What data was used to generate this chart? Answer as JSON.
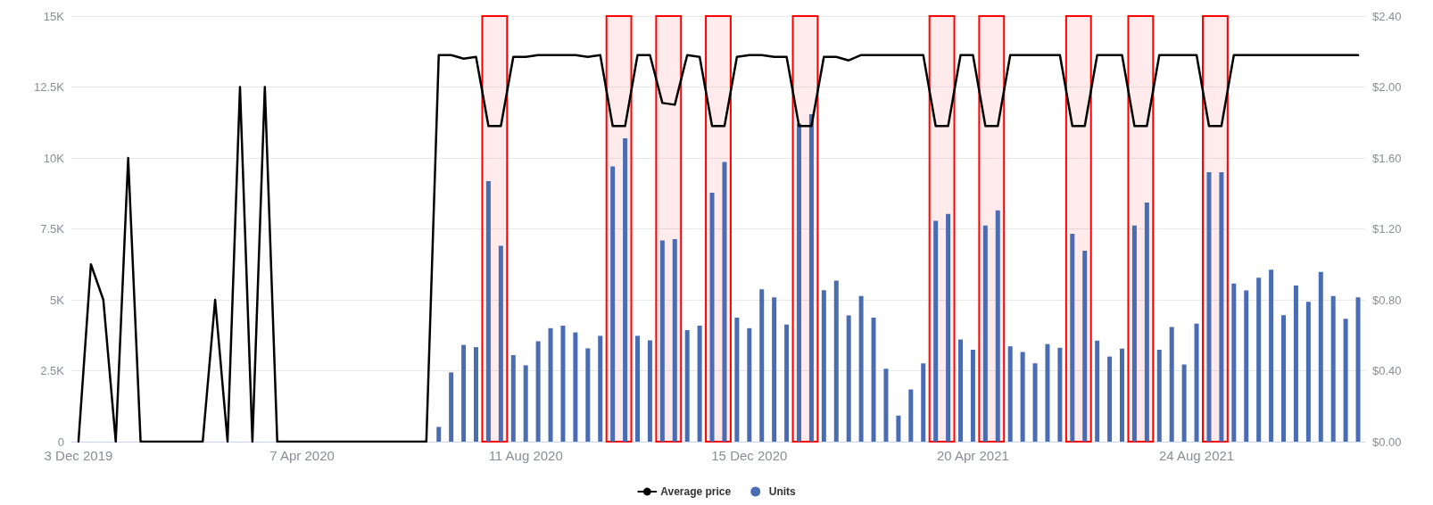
{
  "chart_data": {
    "type": "bar",
    "x": [
      "2019-12-03",
      "2019-12-10",
      "2019-12-17",
      "2019-12-24",
      "2019-12-31",
      "2020-01-07",
      "2020-01-14",
      "2020-01-21",
      "2020-01-28",
      "2020-02-04",
      "2020-02-11",
      "2020-02-18",
      "2020-02-25",
      "2020-03-03",
      "2020-03-10",
      "2020-03-17",
      "2020-03-24",
      "2020-03-31",
      "2020-04-07",
      "2020-04-14",
      "2020-04-21",
      "2020-04-28",
      "2020-05-05",
      "2020-05-12",
      "2020-05-19",
      "2020-05-26",
      "2020-06-02",
      "2020-06-09",
      "2020-06-16",
      "2020-06-23",
      "2020-06-30",
      "2020-07-07",
      "2020-07-14",
      "2020-07-21",
      "2020-07-28",
      "2020-08-04",
      "2020-08-11",
      "2020-08-18",
      "2020-08-25",
      "2020-09-01",
      "2020-09-08",
      "2020-09-15",
      "2020-09-22",
      "2020-09-29",
      "2020-10-06",
      "2020-10-13",
      "2020-10-20",
      "2020-10-27",
      "2020-11-03",
      "2020-11-10",
      "2020-11-17",
      "2020-11-24",
      "2020-12-01",
      "2020-12-08",
      "2020-12-15",
      "2020-12-22",
      "2020-12-29",
      "2021-01-05",
      "2021-01-12",
      "2021-01-19",
      "2021-01-26",
      "2021-02-02",
      "2021-02-09",
      "2021-02-16",
      "2021-02-23",
      "2021-03-02",
      "2021-03-09",
      "2021-03-16",
      "2021-03-23",
      "2021-03-30",
      "2021-04-06",
      "2021-04-13",
      "2021-04-20",
      "2021-04-27",
      "2021-05-04",
      "2021-05-11",
      "2021-05-18",
      "2021-05-25",
      "2021-06-01",
      "2021-06-08",
      "2021-06-15",
      "2021-06-22",
      "2021-06-29",
      "2021-07-06",
      "2021-07-13",
      "2021-07-20",
      "2021-07-27",
      "2021-08-03",
      "2021-08-10",
      "2021-08-17",
      "2021-08-24",
      "2021-08-31",
      "2021-09-07",
      "2021-09-14",
      "2021-09-21",
      "2021-09-28",
      "2021-10-05",
      "2021-10-12",
      "2021-10-19",
      "2021-10-26",
      "2021-11-02",
      "2021-11-09",
      "2021-11-16",
      "2021-11-23"
    ],
    "series": [
      {
        "name": "Average price",
        "type": "line",
        "axis": "y2",
        "color": "#000000",
        "values": [
          0,
          1.0,
          0.8,
          0,
          1.6,
          0,
          0,
          0,
          0,
          0,
          0,
          0.8,
          0,
          2.0,
          0,
          2.0,
          0,
          0,
          0,
          0,
          0,
          0,
          0,
          0,
          0,
          0,
          0,
          0,
          0,
          2.18,
          2.18,
          2.16,
          2.17,
          1.78,
          1.78,
          2.17,
          2.17,
          2.18,
          2.18,
          2.18,
          2.18,
          2.17,
          2.18,
          1.78,
          1.78,
          2.18,
          2.18,
          1.91,
          1.9,
          2.18,
          2.17,
          1.78,
          1.78,
          2.17,
          2.18,
          2.18,
          2.17,
          2.17,
          1.78,
          1.78,
          2.17,
          2.17,
          2.15,
          2.18,
          2.18,
          2.18,
          2.18,
          2.18,
          2.18,
          1.78,
          1.78,
          2.18,
          2.18,
          1.78,
          1.78,
          2.18,
          2.18,
          2.18,
          2.18,
          2.18,
          1.78,
          1.78,
          2.18,
          2.18,
          2.18,
          1.78,
          1.78,
          2.18,
          2.18,
          2.18,
          2.18,
          1.78,
          1.78,
          2.18,
          2.18,
          2.18,
          2.18,
          2.18,
          2.18,
          2.18,
          2.18,
          2.18,
          2.18,
          2.18
        ]
      },
      {
        "name": "Units",
        "axis": "y",
        "color": "#4a6cb3",
        "values": [
          null,
          null,
          null,
          null,
          null,
          null,
          null,
          null,
          null,
          null,
          null,
          null,
          null,
          null,
          null,
          null,
          null,
          null,
          null,
          null,
          null,
          null,
          null,
          null,
          null,
          null,
          null,
          null,
          null,
          520,
          2440,
          3410,
          3330,
          9180,
          6900,
          3050,
          2690,
          3540,
          4000,
          4090,
          3850,
          3290,
          3730,
          9700,
          10690,
          3730,
          3570,
          7090,
          7140,
          3930,
          4090,
          8770,
          9860,
          4370,
          4000,
          5370,
          5090,
          4130,
          11210,
          11540,
          5340,
          5680,
          4450,
          5130,
          4370,
          2570,
          920,
          1840,
          2760,
          7780,
          8030,
          3600,
          3240,
          7620,
          8150,
          3360,
          3160,
          2760,
          3440,
          3310,
          7330,
          6730,
          3560,
          3000,
          3280,
          7620,
          8430,
          3240,
          4040,
          2720,
          4160,
          9500,
          9500,
          5570,
          5330,
          5780,
          6060,
          4460,
          5500,
          4930,
          5980,
          5130,
          4330,
          5090
        ]
      }
    ],
    "xlim": [
      "2019-11-29",
      "2021-11-27"
    ],
    "xticks": [
      {
        "value": "2019-12-03",
        "label": "3 Dec 2019"
      },
      {
        "value": "2020-04-07",
        "label": "7 Apr 2020"
      },
      {
        "value": "2020-08-11",
        "label": "11 Aug 2020"
      },
      {
        "value": "2020-12-15",
        "label": "15 Dec 2020"
      },
      {
        "value": "2021-04-20",
        "label": "20 Apr 2021"
      },
      {
        "value": "2021-08-24",
        "label": "24 Aug 2021"
      }
    ],
    "ylim": [
      0,
      15000
    ],
    "yticks": [
      {
        "value": 0,
        "label": "0"
      },
      {
        "value": 2500,
        "label": "2.5K"
      },
      {
        "value": 5000,
        "label": "5K"
      },
      {
        "value": 7500,
        "label": "7.5K"
      },
      {
        "value": 10000,
        "label": "10K"
      },
      {
        "value": 12500,
        "label": "12.5K"
      },
      {
        "value": 15000,
        "label": "15K"
      }
    ],
    "y2lim": [
      0,
      2.4
    ],
    "y2ticks": [
      {
        "value": 0,
        "label": "$0.00"
      },
      {
        "value": 0.4,
        "label": "$0.40"
      },
      {
        "value": 0.8,
        "label": "$0.80"
      },
      {
        "value": 1.2,
        "label": "$1.20"
      },
      {
        "value": 1.6,
        "label": "$1.60"
      },
      {
        "value": 2.0,
        "label": "$2.00"
      },
      {
        "value": 2.4,
        "label": "$2.40"
      }
    ],
    "bands": [
      {
        "axis": "x",
        "from": "2020-07-17T12:00",
        "to": "2020-07-31T12:00",
        "color": "#ff0000"
      },
      {
        "axis": "x",
        "from": "2020-09-25T12:00",
        "to": "2020-10-09T12:00",
        "color": "#ff0000"
      },
      {
        "axis": "x",
        "from": "2020-10-23T12:00",
        "to": "2020-11-06T12:00",
        "color": "#ff0000"
      },
      {
        "axis": "x",
        "from": "2020-11-20T12:00",
        "to": "2020-12-04T12:00",
        "color": "#ff0000"
      },
      {
        "axis": "x",
        "from": "2021-01-08T12:00",
        "to": "2021-01-22T12:00",
        "color": "#ff0000"
      },
      {
        "axis": "x",
        "from": "2021-03-26T12:00",
        "to": "2021-04-09T12:00",
        "color": "#ff0000"
      },
      {
        "axis": "x",
        "from": "2021-04-23T12:00",
        "to": "2021-05-07T12:00",
        "color": "#ff0000"
      },
      {
        "axis": "x",
        "from": "2021-06-11T12:00",
        "to": "2021-06-25T12:00",
        "color": "#ff0000"
      },
      {
        "axis": "x",
        "from": "2021-07-16T12:00",
        "to": "2021-07-30T12:00",
        "color": "#ff0000"
      },
      {
        "axis": "x",
        "from": "2021-08-27T12:00",
        "to": "2021-09-10T12:00",
        "color": "#ff0000"
      }
    ],
    "grid": "y",
    "legend": "bottom",
    "marker": "none",
    "line_style": "solid"
  }
}
